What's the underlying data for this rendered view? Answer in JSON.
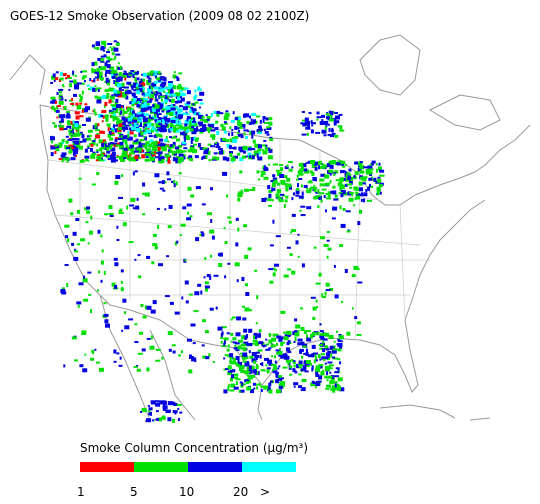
{
  "title": "GOES-12 Smoke Observation (2009 08 02  2100Z)",
  "legend": {
    "title": "Smoke Column Concentration (μg/m³)",
    "colors": [
      "#ff0000",
      "#00e000",
      "#0000e0",
      "#00ffff"
    ],
    "labels": [
      "1",
      "5",
      "10",
      "20",
      ">"
    ]
  }
}
